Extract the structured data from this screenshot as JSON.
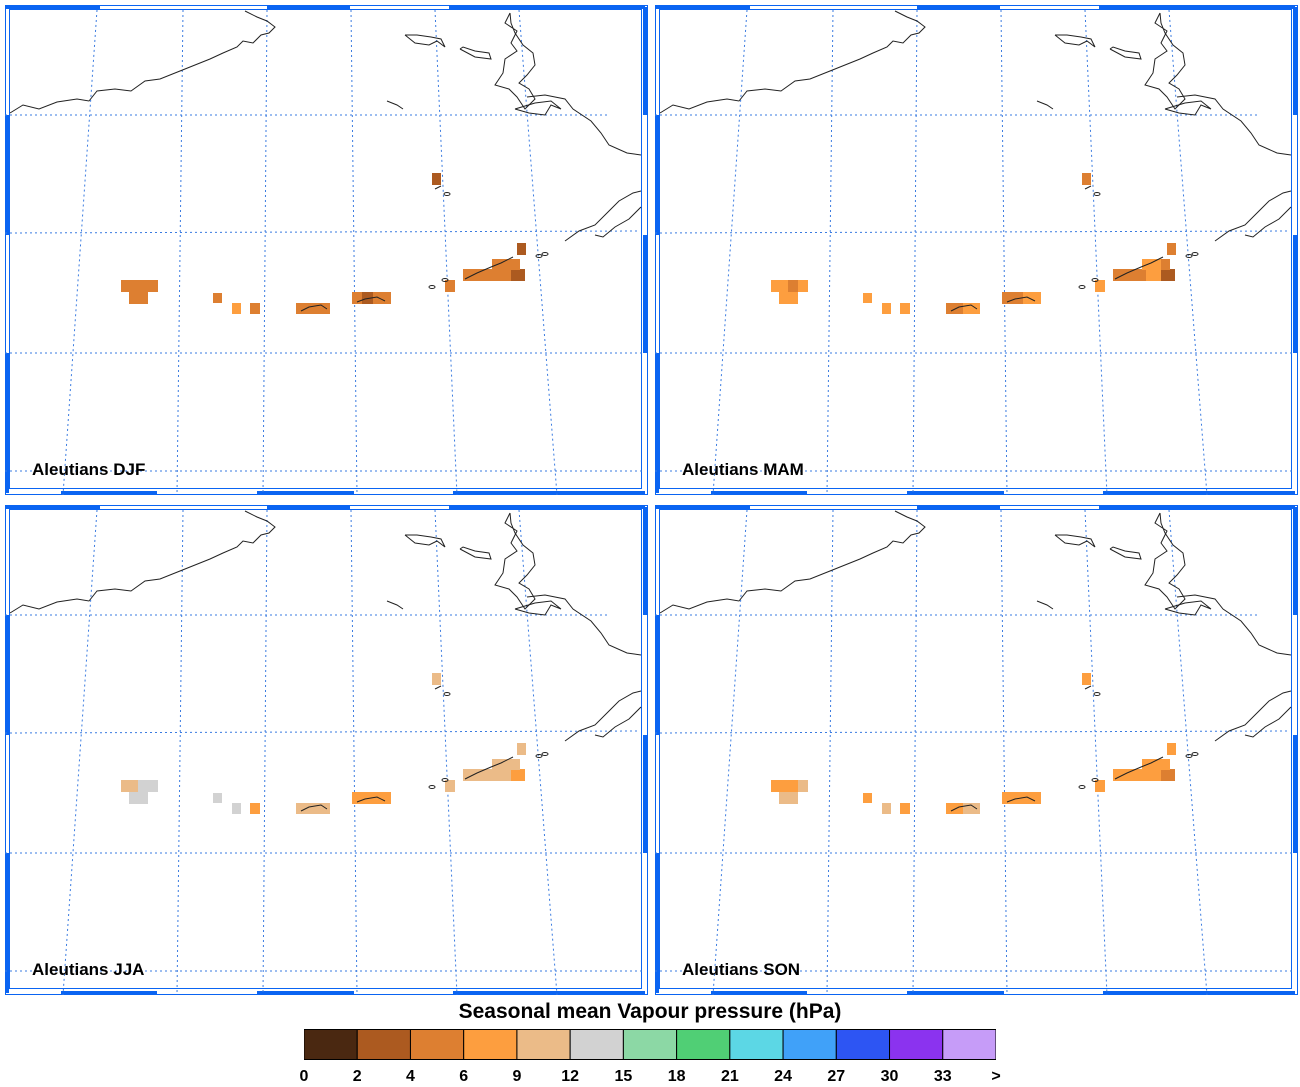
{
  "panels": [
    {
      "label": "Aleutians DJF"
    },
    {
      "label": "Aleutians MAM"
    },
    {
      "label": "Aleutians JJA"
    },
    {
      "label": "Aleutians SON"
    }
  ],
  "legend": {
    "title": "Seasonal mean Vapour pressure (hPa)",
    "ticks": [
      "0",
      "2",
      "4",
      "6",
      "9",
      "12",
      "15",
      "18",
      "21",
      "24",
      "27",
      "30",
      "33",
      ">"
    ],
    "colors": [
      "#4a2811",
      "#ac5a20",
      "#dd7f31",
      "#fd9e3f",
      "#ebbb88",
      "#d2d2d2",
      "#8cd8a5",
      "#50cf75",
      "#5cd7e5",
      "#40a1f9",
      "#2d55f3",
      "#8b33ef",
      "#c69cf8"
    ]
  },
  "map_style": {
    "frame_color": "#0a64f2",
    "grid_color": "#3a7be0",
    "coast_color": "#222222"
  },
  "chart_data": {
    "type": "heatmap",
    "title": "Seasonal mean Vapour pressure (hPa)",
    "colorbar_bins_hpa": [
      0,
      2,
      4,
      6,
      9,
      12,
      15,
      18,
      21,
      24,
      27,
      30,
      33
    ],
    "seasons": [
      {
        "season": "DJF",
        "station_bins": {
          "far_west_group": "4-6",
          "central_west": "4-9",
          "central": "4-6",
          "central_east": "4-6",
          "eastern_chain": "2-6",
          "pribilof": "2-4"
        }
      },
      {
        "season": "MAM",
        "station_bins": {
          "far_west_group": "4-9",
          "central_west": "6-9",
          "central": "4-9",
          "central_east": "4-9",
          "eastern_chain": "2-9",
          "pribilof": "4-6"
        }
      },
      {
        "season": "JJA",
        "station_bins": {
          "far_west_group": "9-15",
          "central_west": "6-15",
          "central": "6-12",
          "central_east": "6-12",
          "eastern_chain": "6-12",
          "pribilof": "9-12"
        }
      },
      {
        "season": "SON",
        "station_bins": {
          "far_west_group": "6-12",
          "central_west": "6-12",
          "central": "6-12",
          "central_east": "6-9",
          "eastern_chain": "4-9",
          "pribilof": "6-9"
        }
      }
    ]
  }
}
